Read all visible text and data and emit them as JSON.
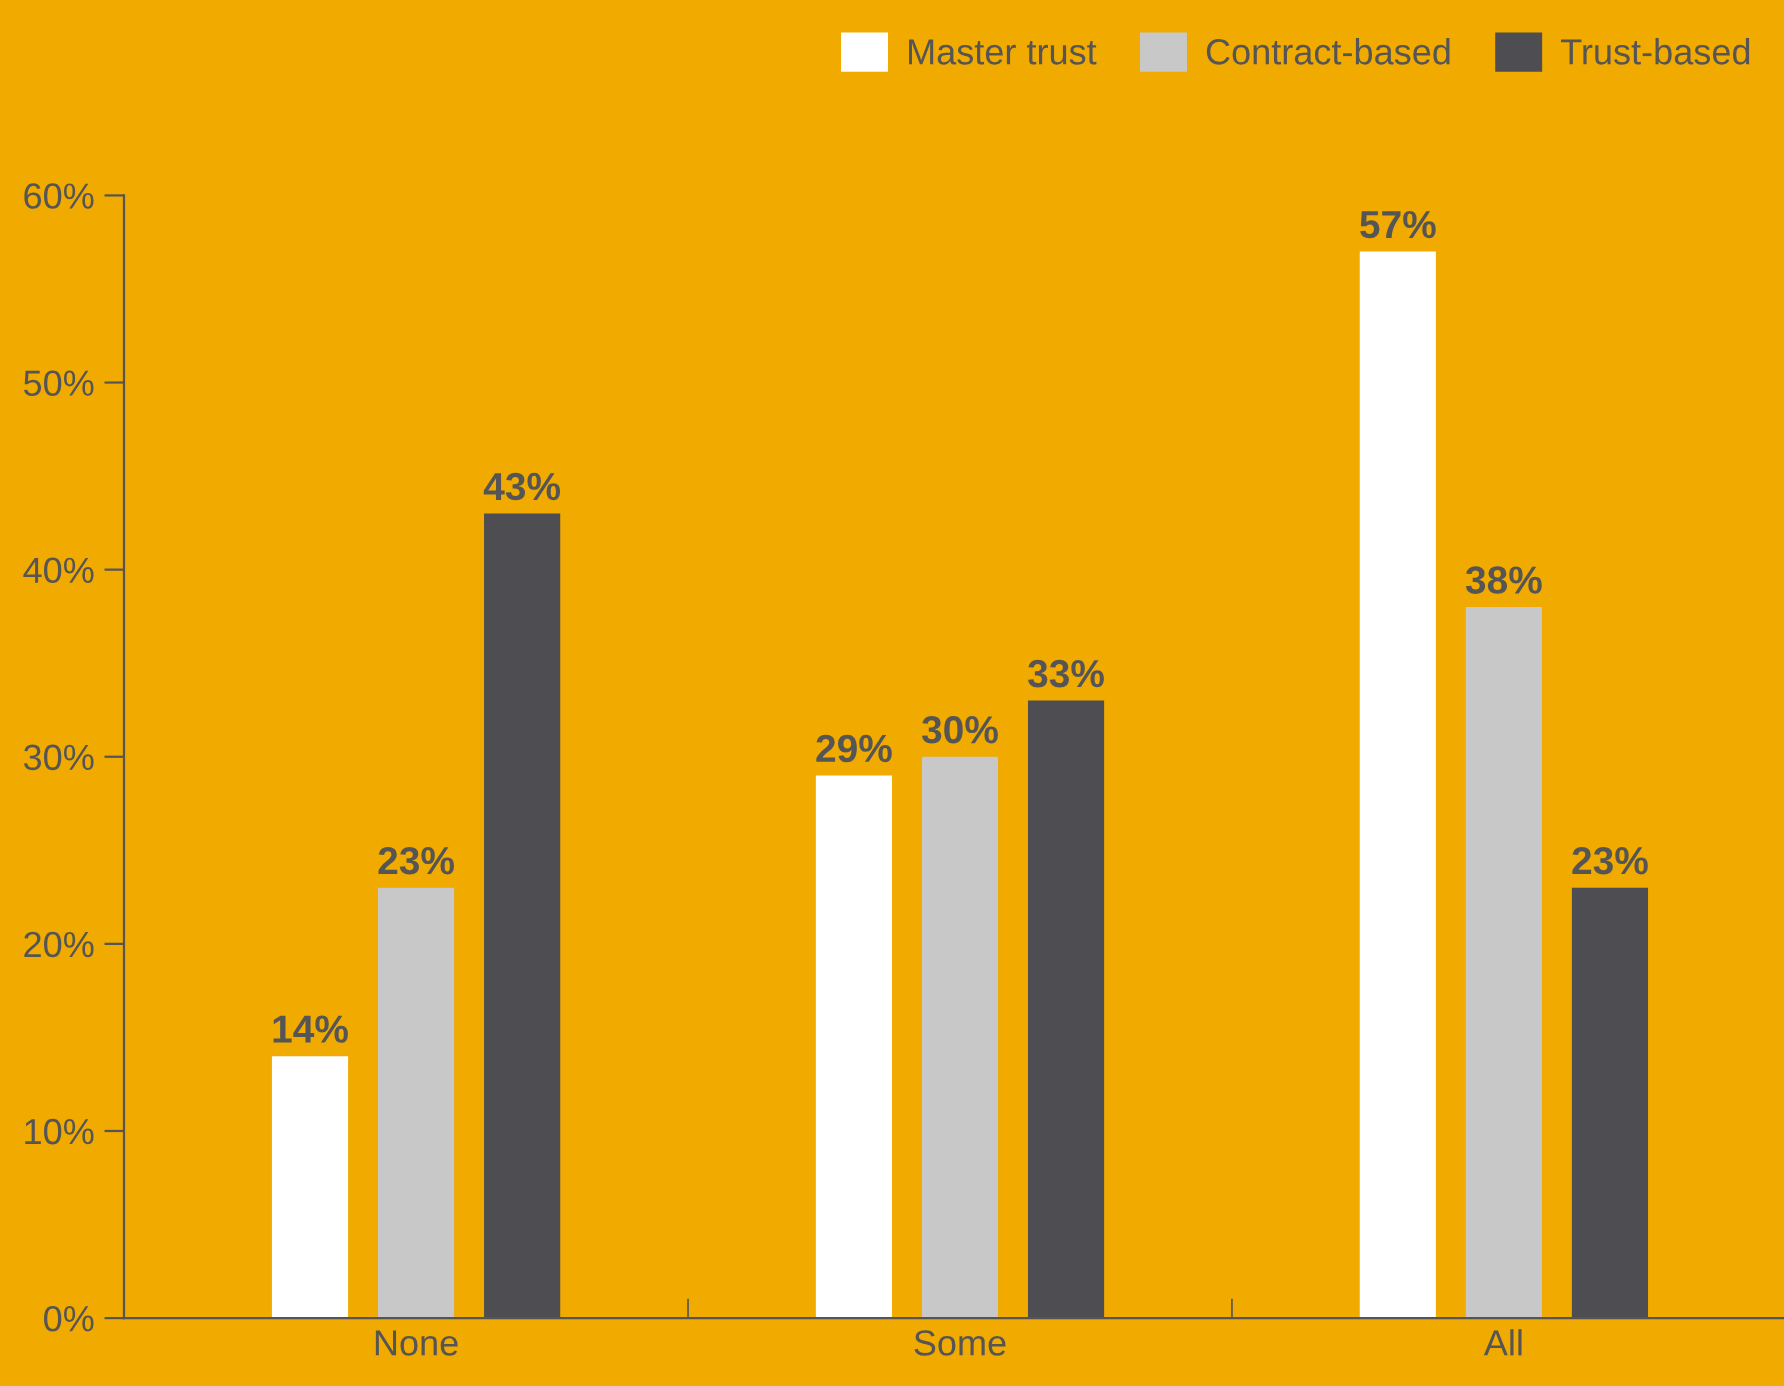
{
  "chart_data": {
    "type": "bar",
    "categories": [
      "None",
      "Some",
      "All"
    ],
    "series": [
      {
        "name": "Master trust",
        "color": "#ffffff",
        "values": [
          14,
          29,
          57
        ],
        "value_labels": [
          "14%",
          "29%",
          "57%"
        ]
      },
      {
        "name": "Contract-based",
        "color": "#c8c8c8",
        "values": [
          23,
          30,
          38
        ],
        "value_labels": [
          "23%",
          "30%",
          "38%"
        ]
      },
      {
        "name": "Trust-based",
        "color": "#4d4d52",
        "values": [
          43,
          33,
          23
        ],
        "value_labels": [
          "43%",
          "33%",
          "23%"
        ]
      }
    ],
    "ylim": [
      0,
      60
    ],
    "yticks": [
      {
        "value": 0,
        "label": "0%"
      },
      {
        "value": 10,
        "label": "10%"
      },
      {
        "value": 20,
        "label": "20%"
      },
      {
        "value": 30,
        "label": "30%"
      },
      {
        "value": 40,
        "label": "40%"
      },
      {
        "value": 50,
        "label": "50%"
      },
      {
        "value": 60,
        "label": "60%"
      }
    ],
    "grid": false,
    "legend": "top right"
  }
}
